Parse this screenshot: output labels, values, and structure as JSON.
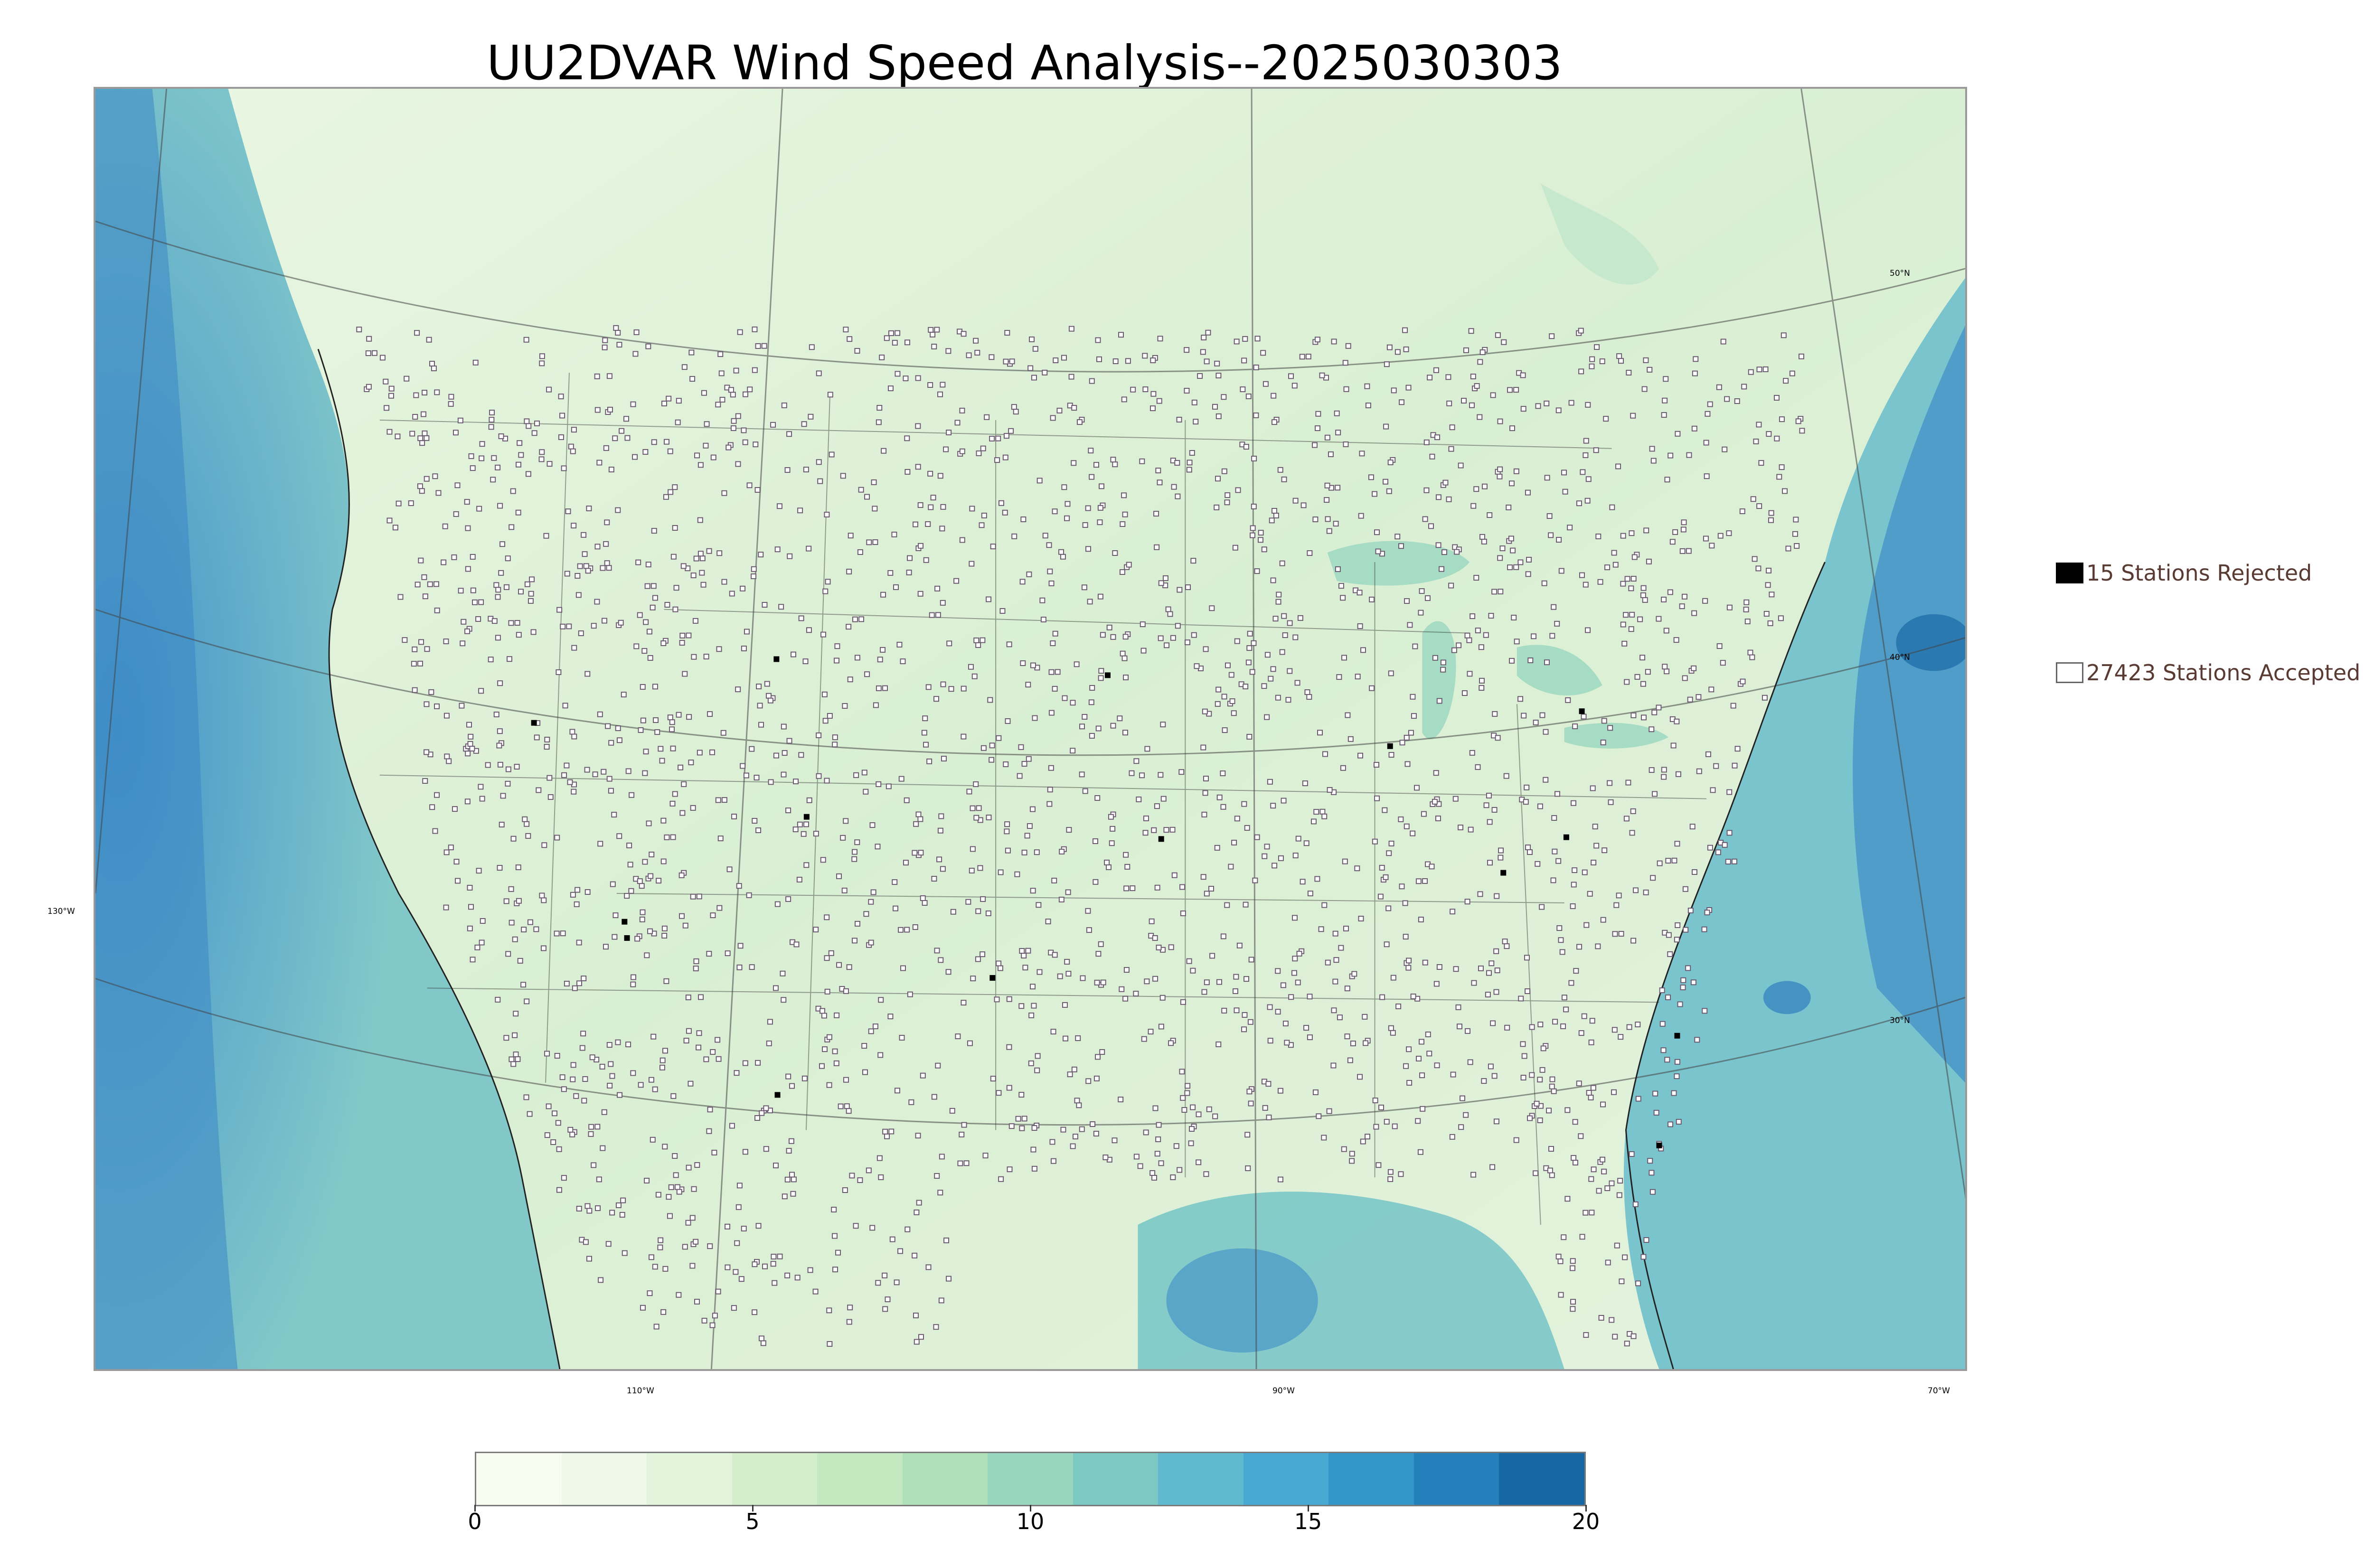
{
  "title": "UU2DVAR Wind Speed Analysis--2025030303",
  "map": {
    "projection": "conic",
    "lon_labels": [
      "130°W",
      "110°W",
      "90°W",
      "70°W"
    ],
    "lat_labels": [
      "50°N",
      "40°N",
      "30°N"
    ],
    "ocean_color": "#4f9fd2",
    "land_color": "#dff1d8",
    "station_marker_color": "#6b5a6f"
  },
  "legend": {
    "rejected": {
      "label": "15 Stations Rejected",
      "count": 15,
      "color": "#000000"
    },
    "accepted": {
      "label": "27423 Stations Accepted",
      "count": 27423,
      "color": "#ffffff"
    }
  },
  "colorbar": {
    "min": 0,
    "max": 20,
    "ticks": [
      "0",
      "5",
      "10",
      "15",
      "20"
    ],
    "colors": [
      "#f7fcf0",
      "#eef8e9",
      "#e3f4dc",
      "#d4eecc",
      "#c4e8c0",
      "#b0e0b8",
      "#98d6bd",
      "#7cc9c4",
      "#5fbad0",
      "#47a9d1",
      "#3496c8",
      "#2480ba",
      "#1668a4"
    ]
  }
}
